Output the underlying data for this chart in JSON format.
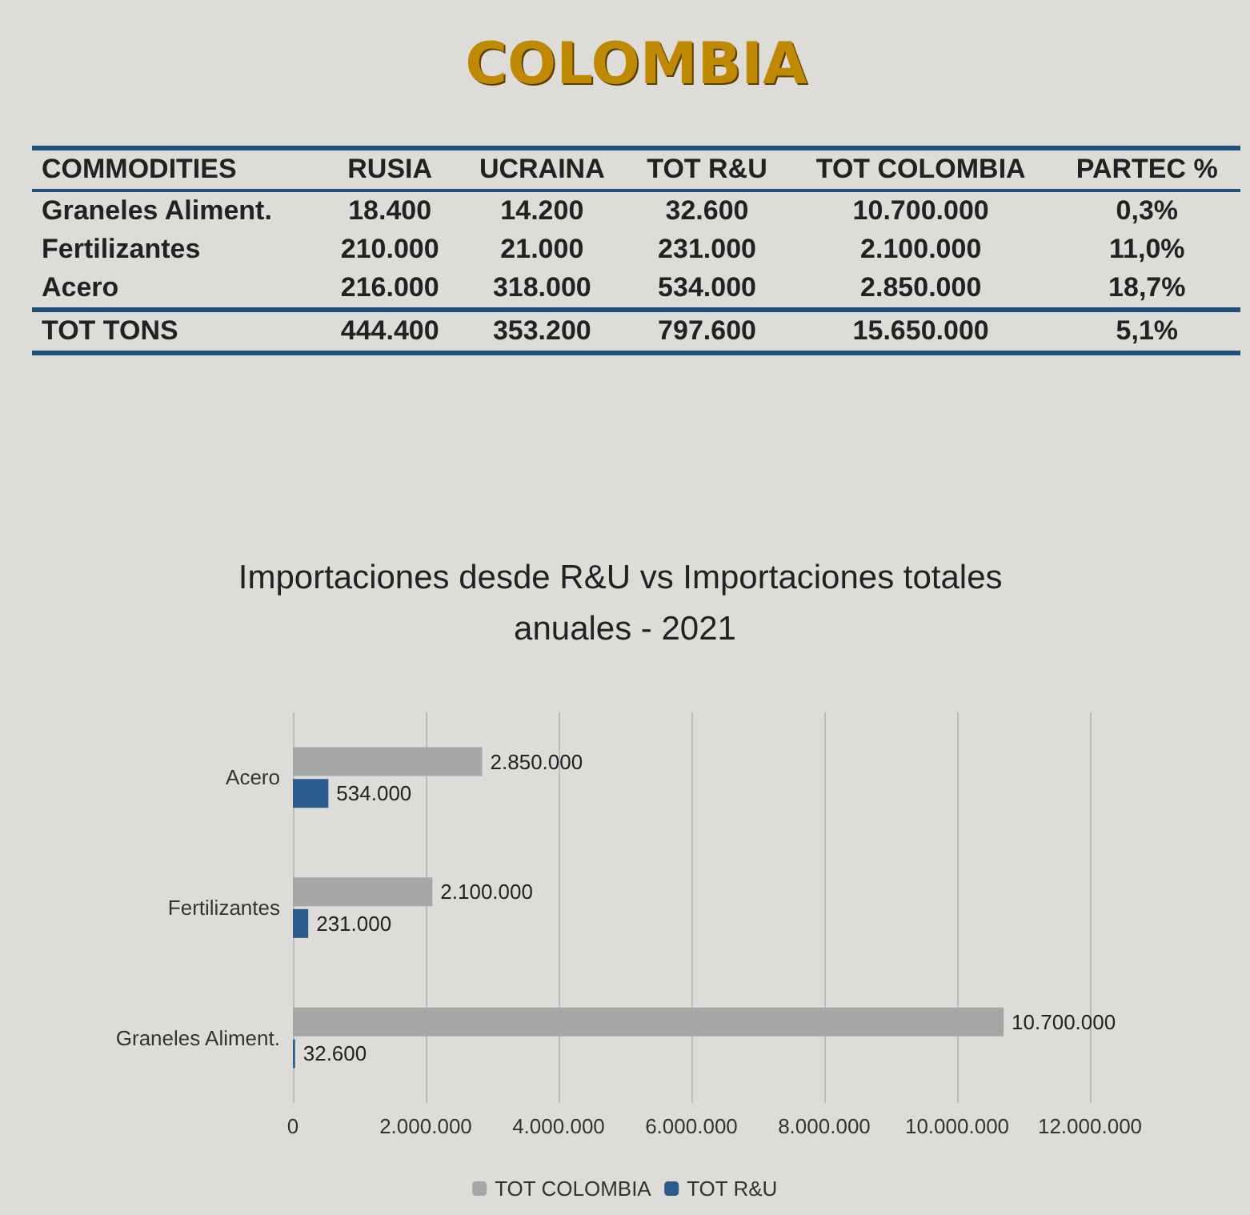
{
  "chart_data": [
    {
      "type": "other",
      "title": "COLOMBIA",
      "categories": [
        "COMMODITIES",
        "RUSIA",
        "UCRAINA",
        "TOT R&U",
        "TOT COLOMBIA",
        "PARTEC %"
      ],
      "cell_labels": [
        [
          "Graneles Aliment.",
          "18.400",
          "14.200",
          "32.600",
          "10.700.000",
          "0,3%"
        ],
        [
          "Fertilizantes",
          "210.000",
          "21.000",
          "231.000",
          "2.100.000",
          "11,0%"
        ],
        [
          "Acero",
          "216.000",
          "318.000",
          "534.000",
          "2.850.000",
          "18,7%"
        ],
        [
          "TOT TONS",
          "444.400",
          "353.200",
          "797.600",
          "15.650.000",
          "5,1%"
        ]
      ]
    },
    {
      "type": "bar",
      "orientation": "horizontal",
      "title": "Importaciones desde R&U vs Importaciones totales anuales - 2021",
      "categories": [
        "Acero",
        "Fertilizantes",
        "Graneles Aliment."
      ],
      "series": [
        {
          "name": "TOT COLOMBIA",
          "color": "#a6a6a6",
          "values": [
            2850000,
            2100000,
            10700000
          ],
          "value_labels": [
            "2.850.000",
            "2.100.000",
            "10.700.000"
          ]
        },
        {
          "name": "TOT R&U",
          "color": "#2a5b8c",
          "values": [
            534000,
            231000,
            32600
          ],
          "value_labels": [
            "534.000",
            "231.000",
            "32.600"
          ]
        }
      ],
      "xlim": [
        0,
        12000000
      ],
      "xticks": [
        0,
        {
          "value": 2000000,
          "label": "2.000.000"
        },
        {
          "value": 4000000,
          "label": "4.000.000"
        },
        {
          "value": 6000000,
          "label": "6.000.000"
        },
        {
          "value": 8000000,
          "label": "8.000.000"
        },
        {
          "value": 10000000,
          "label": "10.000.000"
        },
        {
          "value": 12000000,
          "label": "12.000.000"
        }
      ],
      "grid": "x",
      "legend": "bottom"
    }
  ]
}
